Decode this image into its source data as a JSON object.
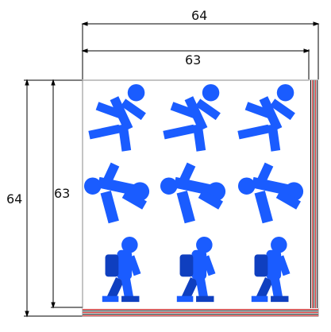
{
  "dimensions": {
    "outer_width_label": "64",
    "inner_width_label": "63",
    "outer_height_label": "64",
    "inner_height_label": "63"
  },
  "sprite_sheet": {
    "rows": 3,
    "columns": 3,
    "sprite_color": "#1a5cff",
    "shadow_color": "#0f3fbf",
    "frame_border_color": "#888888",
    "stripe_color": "#c21b1b",
    "rows_content": [
      {
        "pose": "running-figure"
      },
      {
        "pose": "falling-figure"
      },
      {
        "pose": "walking-figure-with-backpack"
      }
    ]
  }
}
